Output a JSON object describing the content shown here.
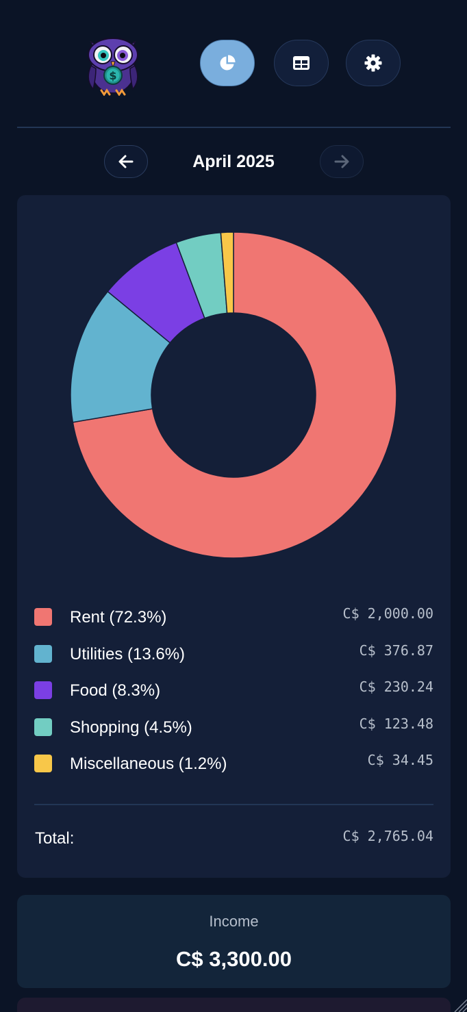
{
  "header": {
    "logo_icon": "owl-money-logo",
    "nav": [
      {
        "name": "chart-view",
        "icon": "pie-chart-icon",
        "active": true
      },
      {
        "name": "table-view",
        "icon": "table-icon",
        "active": false
      },
      {
        "name": "settings",
        "icon": "gear-icon",
        "active": false
      }
    ]
  },
  "month_nav": {
    "label": "April 2025",
    "prev_icon": "arrow-left-icon",
    "next_icon": "arrow-right-icon",
    "next_disabled": true
  },
  "chart_data": {
    "type": "pie",
    "variant": "donut",
    "categories": [
      "Rent",
      "Utilities",
      "Food",
      "Shopping",
      "Miscellaneous"
    ],
    "values": [
      2000.0,
      376.87,
      230.24,
      123.48,
      34.45
    ],
    "colors": [
      "#f07672",
      "#62b3cf",
      "#7b3fe4",
      "#72cdc2",
      "#f8c749"
    ]
  },
  "legend": [
    {
      "label": "Rent (72.3%)",
      "amount": "C$ 2,000.00",
      "color": "#f07672"
    },
    {
      "label": "Utilities (13.6%)",
      "amount": "C$ 376.87",
      "color": "#62b3cf"
    },
    {
      "label": "Food (8.3%)",
      "amount": "C$ 230.24",
      "color": "#7b3fe4"
    },
    {
      "label": "Shopping (4.5%)",
      "amount": "C$ 123.48",
      "color": "#72cdc2"
    },
    {
      "label": "Miscellaneous (1.2%)",
      "amount": "C$ 34.45",
      "color": "#f8c749"
    }
  ],
  "total": {
    "label": "Total:",
    "amount": "C$ 2,765.04"
  },
  "income": {
    "title": "Income",
    "value": "C$ 3,300.00"
  }
}
